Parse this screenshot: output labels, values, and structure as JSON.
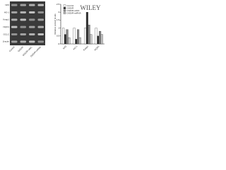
{
  "blot": {
    "rows": [
      "Nrf2",
      "HO-1",
      "Keap1",
      "NQO1",
      "GCLC",
      "β-actin"
    ],
    "lanes": [
      "Control",
      "OGD/R",
      "OGD/R+siNC",
      "OGD/R+siRNA"
    ]
  },
  "chart_data": {
    "type": "bar",
    "ylabel": "Relative protein levels",
    "watermark": "WILEY",
    "categories": [
      "Nrf2",
      "HO-1",
      "Keap1",
      "NQO1"
    ],
    "series": [
      {
        "name": "Control",
        "color": "#ffffff",
        "values": [
          1.0,
          1.0,
          1.0,
          1.0
        ]
      },
      {
        "name": "OGD/R",
        "color": "#333333",
        "values": [
          0.6,
          0.3,
          2.0,
          0.5
        ]
      },
      {
        "name": "OGD/R+siNC",
        "color": "#888888",
        "values": [
          0.9,
          0.9,
          1.2,
          0.8
        ]
      },
      {
        "name": "OGD/R+siRNA",
        "color": "#cccccc",
        "values": [
          0.4,
          0.4,
          0.6,
          0.6
        ]
      }
    ],
    "ylim": [
      0,
      2.5
    ],
    "yticks": [
      0,
      0.5,
      1,
      1.5,
      2,
      2.5
    ]
  }
}
